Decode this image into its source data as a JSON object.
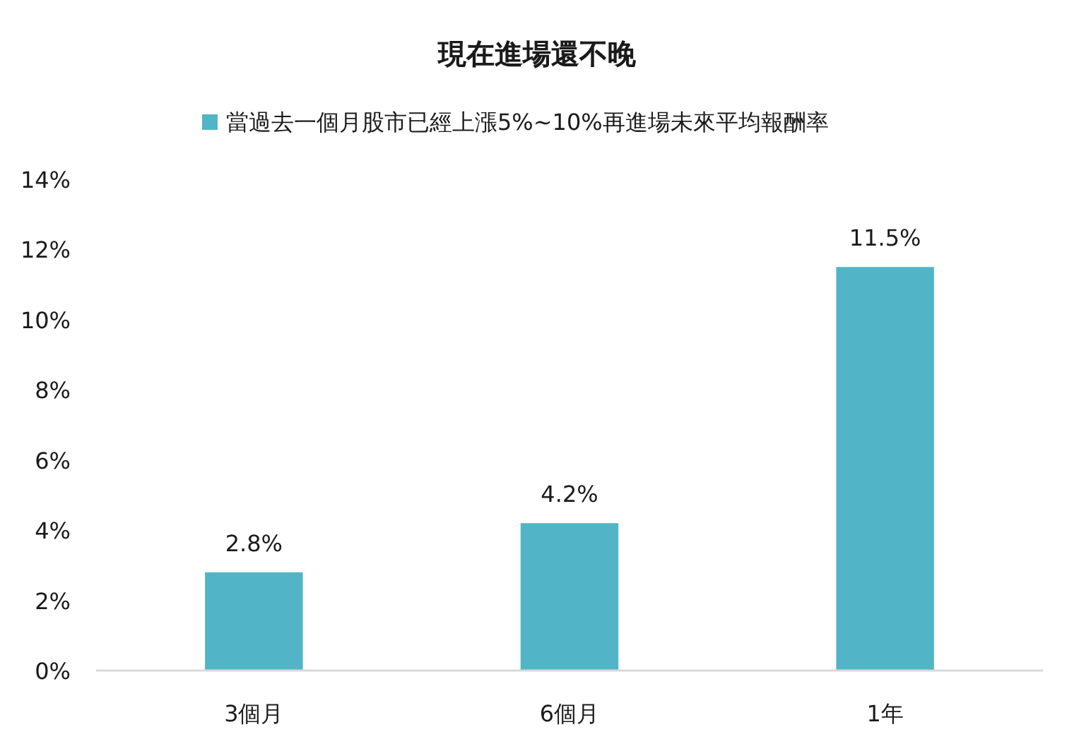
{
  "chart_data": {
    "type": "bar",
    "title": "現在進場還不晚",
    "categories": [
      "3個月",
      "6個月",
      "1年"
    ],
    "series": [
      {
        "name": "當過去一個月股市已經上漲5%~10%再進場未來平均報酬率",
        "color": "#52b5c7",
        "values": [
          2.8,
          4.2,
          11.5
        ],
        "value_labels": [
          "2.8%",
          "4.2%",
          "11.5%"
        ]
      }
    ],
    "ylim": [
      0,
      14
    ],
    "yticks": [
      {
        "value": 0,
        "label": "0%"
      },
      {
        "value": 2,
        "label": "2%"
      },
      {
        "value": 4,
        "label": "4%"
      },
      {
        "value": 6,
        "label": "6%"
      },
      {
        "value": 8,
        "label": "8%"
      },
      {
        "value": 10,
        "label": "10%"
      },
      {
        "value": 12,
        "label": "12%"
      },
      {
        "value": 14,
        "label": "14%"
      }
    ],
    "legend": "top"
  }
}
